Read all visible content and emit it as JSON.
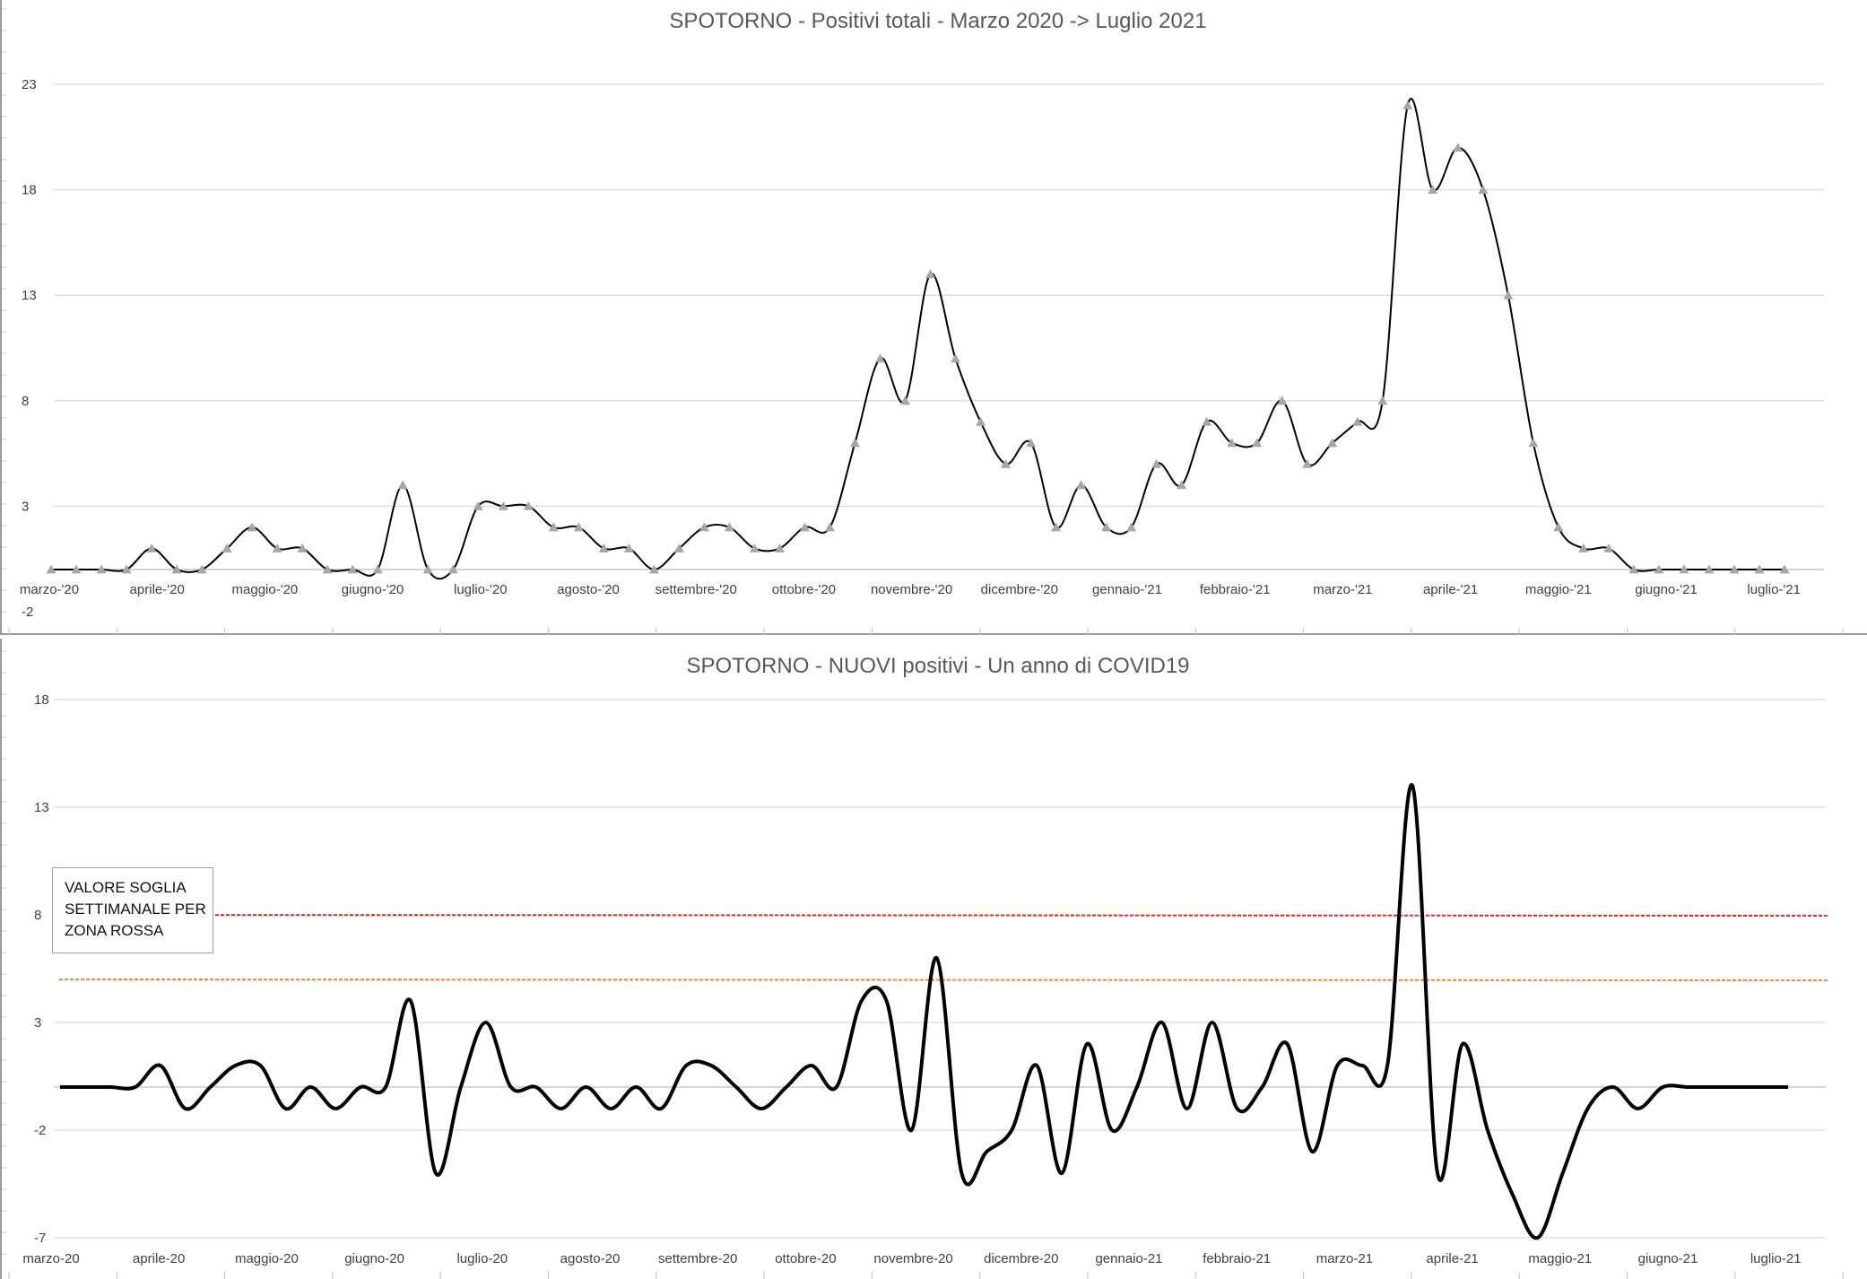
{
  "chart_data": [
    {
      "type": "line",
      "title": "SPOTORNO - Positivi totali - Marzo 2020 -> Luglio 2021",
      "y_ticks": [
        "23",
        "18",
        "13",
        "8",
        "3",
        "-2"
      ],
      "ylim": [
        -2,
        23
      ],
      "x_tick_labels": [
        "marzo-'20",
        "aprile-'20",
        "maggio-'20",
        "giugno-'20",
        "luglio-'20",
        "agosto-'20",
        "settembre-'20",
        "ottobre-'20",
        "novembre-'20",
        "dicembre-'20",
        "gennaio-'21",
        "febbraio-'21",
        "marzo-'21",
        "aprile-'21",
        "maggio-'21",
        "giugno-'21",
        "luglio-'21"
      ],
      "marker": "triangle",
      "series": [
        {
          "values": [
            0,
            0,
            0,
            0,
            1,
            0,
            0,
            1,
            2,
            1,
            1,
            0,
            0,
            0,
            4,
            0,
            0,
            3,
            3,
            3,
            2,
            2,
            1,
            1,
            0,
            1,
            2,
            2,
            1,
            1,
            2,
            2,
            6,
            10,
            8,
            14,
            10,
            7,
            5,
            6,
            2,
            4,
            2,
            2,
            5,
            4,
            7,
            6,
            6,
            8,
            5,
            6,
            7,
            8,
            22,
            18,
            20,
            18,
            13,
            6,
            2,
            1,
            1,
            0,
            0,
            0,
            0,
            0,
            0,
            0
          ]
        }
      ],
      "colors": {
        "line": "#000000",
        "marker": "#a6a6a6",
        "grid": "#d9d9d9"
      }
    },
    {
      "type": "line",
      "title": "SPOTORNO - NUOVI positivi - Un anno di COVID19",
      "y_ticks": [
        "18",
        "13",
        "8",
        "3",
        "-2",
        "-7"
      ],
      "ylim": [
        -7,
        18
      ],
      "x_tick_labels": [
        "marzo-20",
        "aprile-20",
        "maggio-20",
        "giugno-20",
        "luglio-20",
        "agosto-20",
        "settembre-20",
        "ottobre-20",
        "novembre-20",
        "dicembre-20",
        "gennaio-21",
        "febbraio-21",
        "marzo-21",
        "aprile-21",
        "maggio-21",
        "giugno-21",
        "luglio-21"
      ],
      "series": [
        {
          "values": [
            0,
            0,
            0,
            0,
            1,
            -1,
            0,
            1,
            1,
            -1,
            0,
            -1,
            0,
            0,
            4,
            -4,
            0,
            3,
            0,
            0,
            -1,
            0,
            -1,
            0,
            -1,
            1,
            1,
            0,
            -1,
            0,
            1,
            0,
            4,
            4,
            -2,
            6,
            -4,
            -3,
            -2,
            1,
            -4,
            2,
            -2,
            0,
            3,
            -1,
            3,
            -1,
            0,
            2,
            -3,
            1,
            1,
            1,
            14,
            -4,
            2,
            -2,
            -5,
            -7,
            -4,
            -1,
            0,
            -1,
            0,
            0,
            0,
            0,
            0,
            0
          ]
        }
      ],
      "threshold_lines": [
        {
          "value": 8,
          "color": "#e02020"
        },
        {
          "value": 5,
          "color": "#ec7d31"
        }
      ],
      "annotation": [
        "VALORE SOGLIA",
        "SETTIMANALE PER",
        "ZONA ROSSA"
      ],
      "colors": {
        "line": "#000000",
        "grid": "#d9d9d9"
      }
    }
  ]
}
